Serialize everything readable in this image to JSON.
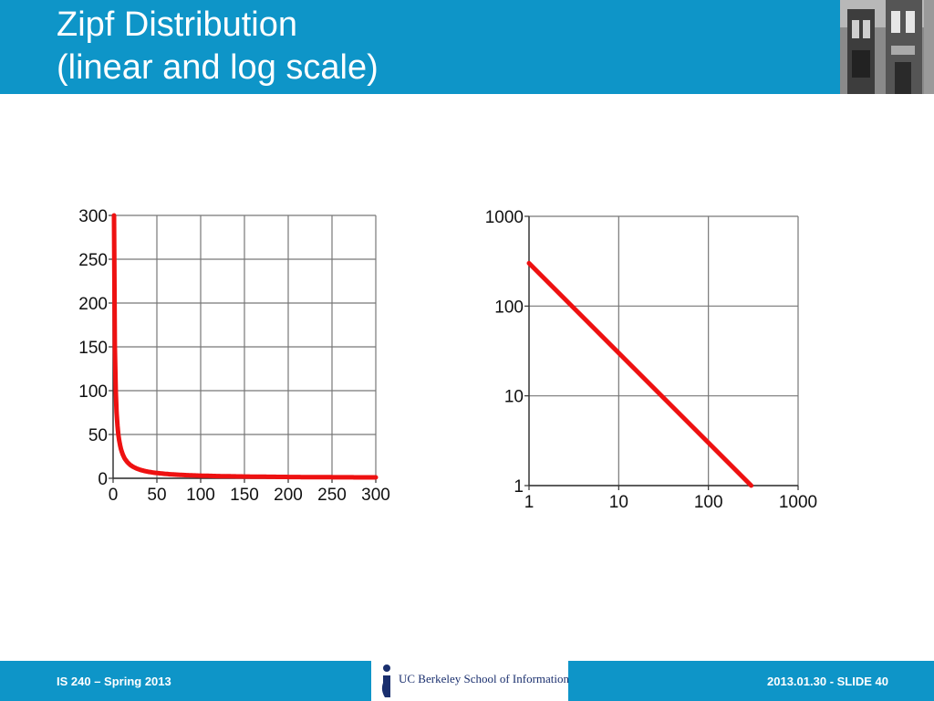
{
  "slide": {
    "title_line1": "Zipf Distribution",
    "title_line2": "(linear and log scale)",
    "footer_left": "IS 240 – Spring 2013",
    "footer_right": "2013.01.30 - SLIDE 40",
    "logo_text": "UC Berkeley School of Information"
  },
  "colors": {
    "header": "#0e95c8",
    "curve": "#ee1111",
    "grid": "#777777"
  },
  "chart_data": [
    {
      "type": "line",
      "title": "",
      "xlabel": "",
      "ylabel": "",
      "xscale": "linear",
      "yscale": "linear",
      "xlim": [
        0,
        300
      ],
      "ylim": [
        0,
        300
      ],
      "xticks": [
        "0",
        "50",
        "100",
        "150",
        "200",
        "250",
        "300"
      ],
      "yticks": [
        "0",
        "50",
        "100",
        "150",
        "200",
        "250",
        "300"
      ],
      "grid": true,
      "series": [
        {
          "x": [
            1,
            2,
            3,
            4,
            5,
            6,
            8,
            10,
            12,
            15,
            20,
            25,
            30,
            40,
            50,
            60,
            80,
            100,
            150,
            200,
            250,
            300
          ],
          "y": [
            300,
            150,
            100,
            75,
            60,
            50,
            37.5,
            30,
            25,
            20,
            15,
            12,
            10,
            7.5,
            6,
            5,
            3.75,
            3,
            2,
            1.5,
            1.2,
            1
          ]
        }
      ]
    },
    {
      "type": "line",
      "title": "",
      "xlabel": "",
      "ylabel": "",
      "xscale": "log",
      "yscale": "log",
      "xlim": [
        1,
        1000
      ],
      "ylim": [
        1,
        1000
      ],
      "xticks": [
        "1",
        "10",
        "100",
        "1000"
      ],
      "yticks": [
        "1",
        "10",
        "100",
        "1000"
      ],
      "grid": true,
      "series": [
        {
          "x": [
            1,
            300
          ],
          "y": [
            300,
            1
          ]
        }
      ]
    }
  ]
}
